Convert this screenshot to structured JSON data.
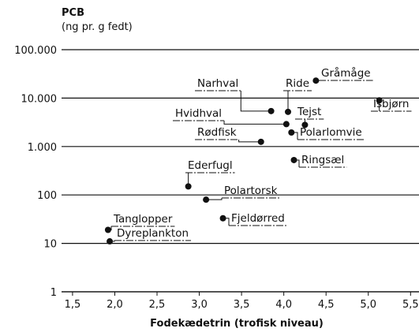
{
  "chart_data": {
    "type": "scatter",
    "title": "PCB",
    "subtitle": "(ng  pr. g fedt)",
    "x_label": "Fodekædetrin (trofisk niveau)",
    "labels": [
      "Gråmåge",
      "Isbjørn",
      "Narhval",
      "Ride",
      "Hvidhval",
      "Tejst",
      "Polarlomvie",
      "Rødfisk",
      "Ringsæl",
      "Ederfugl",
      "Polartorsk",
      "Fjeldørred",
      "Tanglopper",
      "Dyreplankton"
    ],
    "x": [
      4.38,
      5.13,
      3.85,
      4.05,
      4.03,
      4.25,
      4.09,
      3.73,
      4.12,
      2.87,
      3.08,
      3.28,
      1.92,
      1.94
    ],
    "values": [
      23000,
      9000,
      5400,
      5200,
      2900,
      2800,
      1950,
      1250,
      525,
      150,
      80,
      33,
      19,
      11
    ],
    "color": "#111111",
    "log_y": true,
    "grid": true,
    "xlim": [
      1.37,
      5.6
    ],
    "ylim": [
      1,
      100000
    ],
    "xticks": [
      {
        "value": 1.5,
        "label": "1,5"
      },
      {
        "value": 2,
        "label": "2,0"
      },
      {
        "value": 2.5,
        "label": "2,5"
      },
      {
        "value": 3,
        "label": "3,0"
      },
      {
        "value": 3.5,
        "label": "3,5"
      },
      {
        "value": 4,
        "label": "4,0"
      },
      {
        "value": 4.5,
        "label": "4,5"
      },
      {
        "value": 5,
        "label": "5,0"
      },
      {
        "value": 5.5,
        "label": "5,5"
      }
    ],
    "yticks": [
      1,
      10,
      100,
      {
        "value": 1000,
        "label": "1.000"
      },
      {
        "value": 10000,
        "label": "10.000"
      },
      {
        "value": 100000,
        "label": "100.000"
      }
    ]
  }
}
